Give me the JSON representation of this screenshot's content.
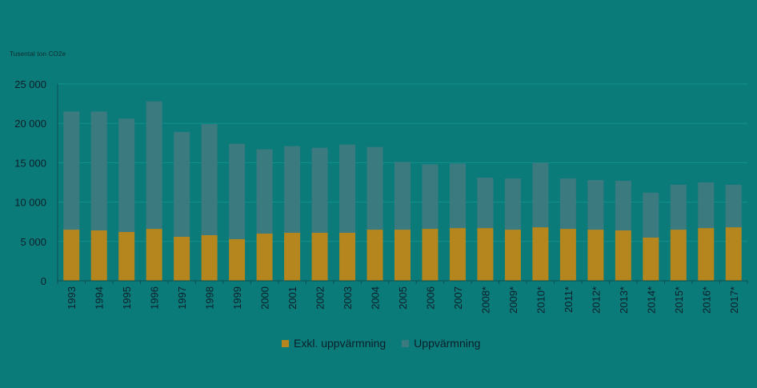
{
  "chart_data": {
    "type": "bar",
    "stacked": true,
    "title": "",
    "unit_label": "Tusental ton CO2e",
    "xlabel": "",
    "ylabel": "",
    "ylim": [
      0,
      25000
    ],
    "yticks": [
      0,
      5000,
      10000,
      15000,
      20000,
      25000
    ],
    "ytick_labels": [
      "0",
      "5 000",
      "10 000",
      "15 000",
      "20 000",
      "25 000"
    ],
    "grid": true,
    "legend_position": "bottom",
    "categories": [
      "1993",
      "1994",
      "1995",
      "1996",
      "1997",
      "1998",
      "1999",
      "2000",
      "2001",
      "2002",
      "2003",
      "2004",
      "2005",
      "2006",
      "2007",
      "2008*",
      "2009*",
      "2010*",
      "2011*",
      "2012*",
      "2013*",
      "2014*",
      "2015*",
      "2016*",
      "2017*"
    ],
    "series": [
      {
        "name": "Exkl. uppvärmning",
        "color": "#b5861e",
        "values": [
          6500,
          6400,
          6200,
          6600,
          5600,
          5800,
          5300,
          6000,
          6100,
          6100,
          6100,
          6500,
          6500,
          6600,
          6700,
          6700,
          6500,
          6800,
          6600,
          6500,
          6400,
          5500,
          6500,
          6700,
          6800
        ]
      },
      {
        "name": "Uppvärmning",
        "color": "#3b7b80",
        "values": [
          15000,
          15100,
          14400,
          16200,
          13300,
          14100,
          12100,
          10700,
          11000,
          10800,
          11200,
          10500,
          8600,
          8200,
          8200,
          6400,
          6500,
          8200,
          6400,
          6300,
          6300,
          5700,
          5700,
          5800,
          5400
        ]
      }
    ]
  }
}
